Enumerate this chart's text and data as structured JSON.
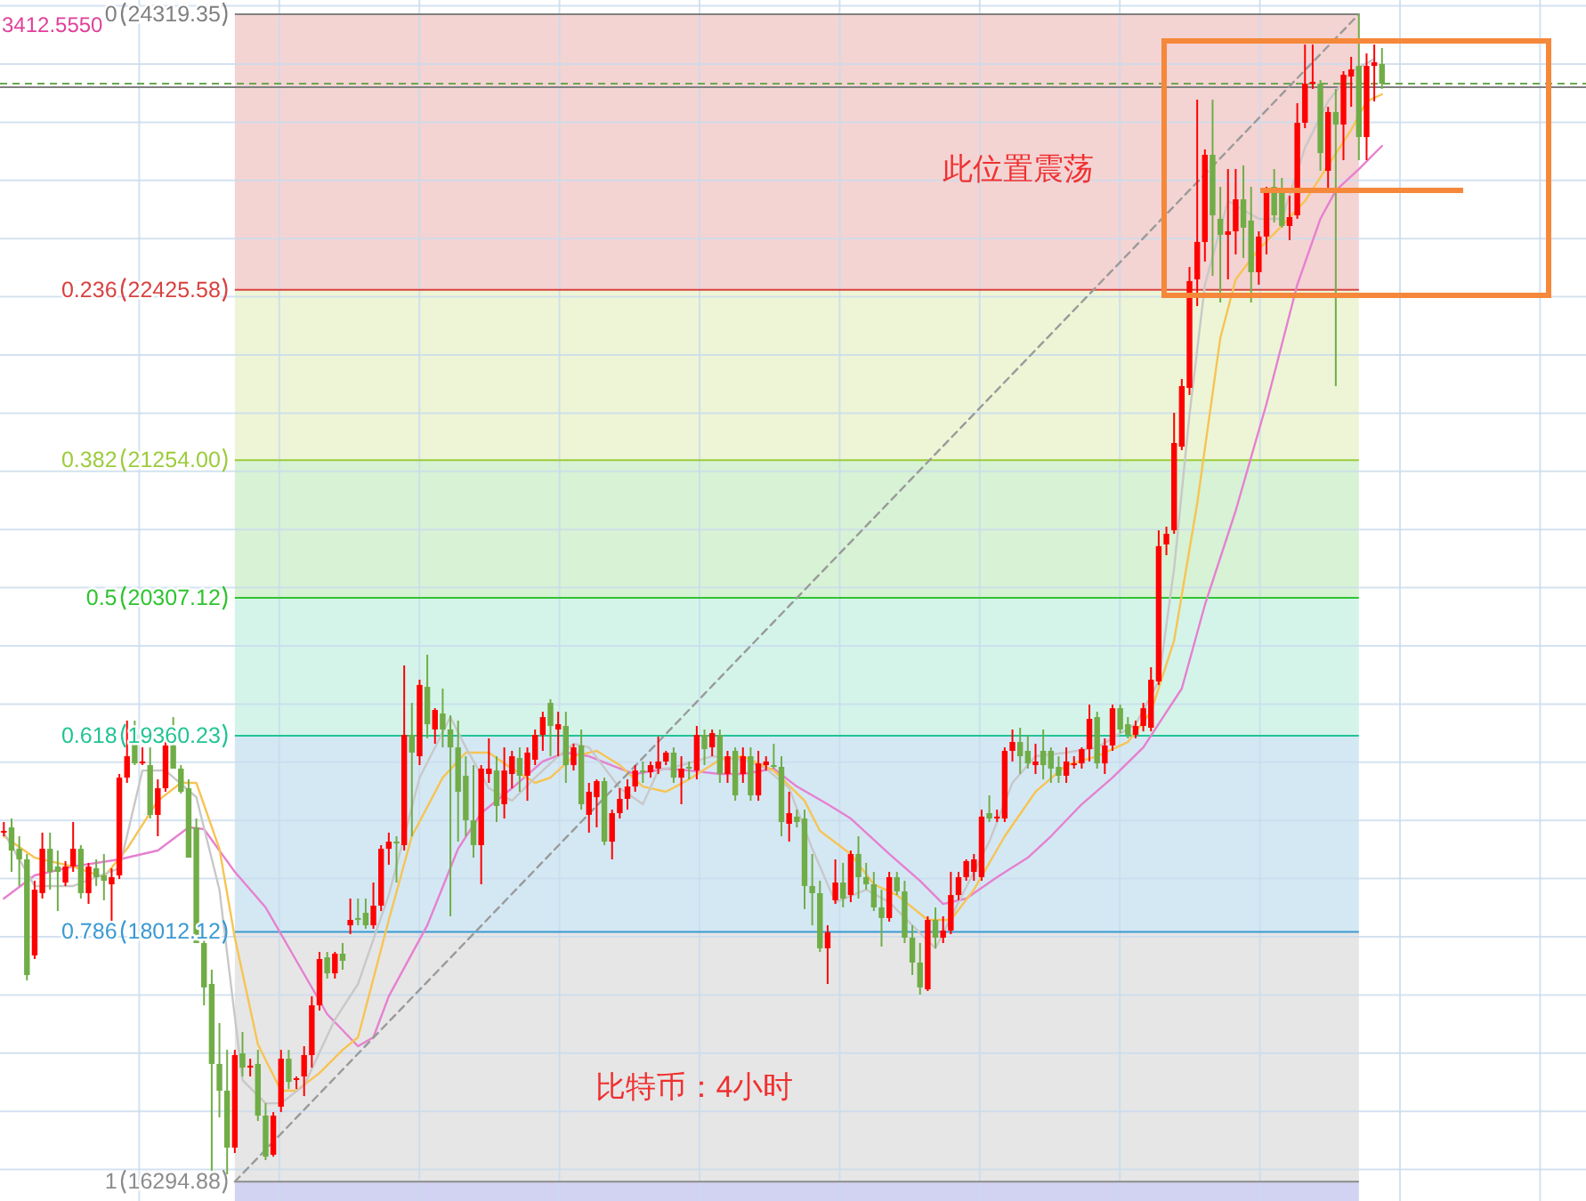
{
  "chart_data": {
    "type": "candlestick",
    "categories": [
      null,
      null,
      null,
      null,
      null,
      null,
      null,
      null,
      null,
      null,
      null,
      null,
      null,
      null,
      null,
      null,
      null,
      null,
      null,
      null,
      null,
      null,
      null,
      null,
      null,
      null,
      null,
      null,
      null,
      null,
      null,
      null,
      null,
      null,
      null,
      null,
      null,
      null,
      null,
      null,
      null,
      null,
      null,
      null,
      null,
      null,
      null,
      null,
      null,
      null,
      null,
      null,
      null,
      null,
      null,
      null,
      null,
      null,
      null,
      null,
      null,
      null,
      null,
      null,
      null,
      null,
      null,
      null,
      null,
      null,
      null,
      null,
      null,
      null,
      null,
      null,
      null,
      null,
      null,
      null,
      null,
      null,
      null,
      null,
      null,
      null,
      null,
      null,
      null,
      null,
      null,
      null,
      null,
      null,
      null,
      null,
      null,
      null,
      null,
      null,
      null,
      null,
      null,
      null,
      null,
      null,
      null,
      null,
      null,
      null,
      null,
      null,
      null,
      null,
      null,
      null,
      null,
      null,
      null,
      null,
      null,
      null,
      null,
      null,
      null,
      null,
      null,
      null,
      null,
      null,
      null,
      null,
      null,
      null,
      null,
      null,
      null,
      null,
      null,
      null,
      null,
      null,
      null,
      null,
      null,
      null,
      null,
      null,
      null,
      null,
      null,
      null,
      null,
      null,
      null,
      null,
      null,
      null,
      null,
      null,
      null,
      null,
      null,
      null,
      null,
      null,
      null,
      null,
      null,
      null,
      null,
      null,
      null,
      null,
      null,
      null,
      null,
      null,
      null,
      null,
      null,
      null,
      null,
      null,
      null,
      null,
      null,
      null,
      null,
      null,
      null,
      null,
      null,
      null,
      null,
      null,
      null,
      null,
      null,
      null,
      null,
      null,
      null,
      null,
      null,
      null
    ],
    "ohlc": [
      [
        18694,
        18767,
        18669,
        18706
      ],
      [
        18730,
        18791,
        18424,
        18571
      ],
      [
        18583,
        18669,
        18327,
        18510
      ],
      [
        18510,
        18547,
        17678,
        17715
      ],
      [
        17850,
        18363,
        17825,
        18302
      ],
      [
        18278,
        18694,
        18241,
        18583
      ],
      [
        18583,
        18694,
        18302,
        18424
      ],
      [
        18461,
        18571,
        18155,
        18424
      ],
      [
        18351,
        18498,
        18327,
        18461
      ],
      [
        18461,
        18767,
        18424,
        18583
      ],
      [
        18583,
        18608,
        18241,
        18278
      ],
      [
        18278,
        18486,
        18204,
        18461
      ],
      [
        18449,
        18510,
        18327,
        18388
      ],
      [
        18400,
        18547,
        18229,
        18363
      ],
      [
        18339,
        18449,
        18057,
        18388
      ],
      [
        18400,
        19097,
        18375,
        19072
      ],
      [
        19072,
        19464,
        19036,
        19219
      ],
      [
        19366,
        19464,
        19158,
        19170
      ],
      [
        19170,
        19280,
        19158,
        19183
      ],
      [
        19158,
        19280,
        18791,
        18816
      ],
      [
        18816,
        19060,
        18669,
        18999
      ],
      [
        18999,
        19329,
        18975,
        19293
      ],
      [
        19293,
        19488,
        19134,
        19134
      ],
      [
        19134,
        19158,
        18962,
        18975
      ],
      [
        18999,
        19060,
        18522,
        18522
      ],
      [
        18730,
        18791,
        17935,
        17935
      ],
      [
        17935,
        17996,
        17507,
        17630
      ],
      [
        17654,
        17752,
        16370,
        17104
      ],
      [
        17104,
        17385,
        16737,
        16920
      ],
      [
        16920,
        17201,
        16345,
        16529
      ],
      [
        16529,
        17201,
        16492,
        17165
      ],
      [
        17177,
        17324,
        17018,
        17079
      ],
      [
        17079,
        17140,
        17018,
        17092
      ],
      [
        17104,
        17201,
        16712,
        16749
      ],
      [
        16749,
        16834,
        16443,
        16467
      ],
      [
        16480,
        16773,
        16467,
        16749
      ],
      [
        16810,
        17201,
        16773,
        17140
      ],
      [
        17140,
        17201,
        16932,
        16981
      ],
      [
        16994,
        17018,
        16932,
        17006
      ],
      [
        17018,
        17226,
        16883,
        17165
      ],
      [
        17165,
        17569,
        17079,
        17507
      ],
      [
        17507,
        17874,
        17471,
        17825
      ],
      [
        17837,
        17874,
        17691,
        17727
      ],
      [
        17727,
        17874,
        17691,
        17862
      ],
      [
        17862,
        17935,
        17752,
        17813
      ],
      [
        18057,
        18241,
        17996,
        18094
      ],
      [
        18107,
        18241,
        18057,
        18094
      ],
      [
        18143,
        18241,
        18033,
        18057
      ],
      [
        18057,
        18351,
        18033,
        18192
      ],
      [
        18192,
        18608,
        18155,
        18583
      ],
      [
        18583,
        18694,
        18473,
        18632
      ],
      [
        18632,
        18669,
        18351,
        18620
      ],
      [
        18608,
        19843,
        18571,
        19366
      ],
      [
        19366,
        19586,
        18669,
        19244
      ],
      [
        19219,
        19745,
        19158,
        19709
      ],
      [
        19696,
        19917,
        19342,
        19439
      ],
      [
        19403,
        19549,
        19305,
        19537
      ],
      [
        19513,
        19684,
        19280,
        19403
      ],
      [
        19403,
        19500,
        18119,
        19280
      ],
      [
        19280,
        19464,
        18632,
        18975
      ],
      [
        19085,
        19219,
        18669,
        18779
      ],
      [
        18779,
        19158,
        18522,
        18608
      ],
      [
        18608,
        19158,
        18339,
        19134
      ],
      [
        19097,
        19342,
        19036,
        19134
      ],
      [
        19121,
        19219,
        18767,
        18877
      ],
      [
        18889,
        19280,
        18791,
        19121
      ],
      [
        19097,
        19256,
        18999,
        19219
      ],
      [
        19207,
        19280,
        18975,
        19085
      ],
      [
        19085,
        19280,
        18913,
        19244
      ],
      [
        19195,
        19403,
        19158,
        19366
      ],
      [
        19366,
        19525,
        19256,
        19488
      ],
      [
        19586,
        19611,
        19219,
        19427
      ],
      [
        19403,
        19525,
        19219,
        19439
      ],
      [
        19427,
        19525,
        19036,
        19158
      ],
      [
        19158,
        19305,
        19121,
        19280
      ],
      [
        19293,
        19403,
        18852,
        18889
      ],
      [
        18816,
        19036,
        18694,
        18975
      ],
      [
        18938,
        19060,
        18730,
        19048
      ],
      [
        19048,
        19072,
        18608,
        18632
      ],
      [
        18632,
        18852,
        18510,
        18828
      ],
      [
        18828,
        18999,
        18791,
        18926
      ],
      [
        18926,
        19060,
        18852,
        19011
      ],
      [
        19011,
        19158,
        18975,
        19121
      ],
      [
        19121,
        19183,
        19036,
        19109
      ],
      [
        19109,
        19183,
        19072,
        19158
      ],
      [
        19134,
        19354,
        19097,
        19183
      ],
      [
        19183,
        19256,
        19158,
        19244
      ],
      [
        19244,
        19280,
        19036,
        19072
      ],
      [
        19072,
        19219,
        18889,
        19134
      ],
      [
        19146,
        19183,
        19060,
        19134
      ],
      [
        19121,
        19427,
        19060,
        19366
      ],
      [
        19366,
        19403,
        19158,
        19268
      ],
      [
        19280,
        19403,
        19219,
        19378
      ],
      [
        19366,
        19403,
        19036,
        19097
      ],
      [
        19097,
        19256,
        19036,
        19219
      ],
      [
        19256,
        19280,
        18913,
        18950
      ],
      [
        19097,
        19280,
        19036,
        19219
      ],
      [
        19219,
        19280,
        18913,
        18950
      ],
      [
        18950,
        19256,
        18913,
        19170
      ],
      [
        19158,
        19219,
        19121,
        19183
      ],
      [
        19158,
        19305,
        19134,
        19146
      ],
      [
        19146,
        19219,
        18669,
        18767
      ],
      [
        18755,
        18975,
        18632,
        18828
      ],
      [
        18804,
        18852,
        18730,
        18767
      ],
      [
        18791,
        18852,
        18168,
        18327
      ],
      [
        18327,
        18547,
        18057,
        18278
      ],
      [
        18278,
        18363,
        17874,
        17899
      ],
      [
        17899,
        18057,
        17654,
        18009
      ],
      [
        18229,
        18510,
        18204,
        18351
      ],
      [
        18351,
        18486,
        18180,
        18241
      ],
      [
        18265,
        18571,
        18216,
        18547
      ],
      [
        18547,
        18669,
        18241,
        18388
      ],
      [
        18388,
        18486,
        18302,
        18339
      ],
      [
        18339,
        18424,
        18155,
        18180
      ],
      [
        18180,
        18302,
        17911,
        18107
      ],
      [
        18107,
        18424,
        18082,
        18388
      ],
      [
        18388,
        18424,
        18265,
        18290
      ],
      [
        18290,
        18363,
        17935,
        17972
      ],
      [
        17972,
        18057,
        17715,
        17801
      ],
      [
        17801,
        17935,
        17581,
        17630
      ],
      [
        17617,
        18119,
        17605,
        18094
      ],
      [
        18094,
        18180,
        17899,
        17972
      ],
      [
        17972,
        18119,
        17935,
        18021
      ],
      [
        18021,
        18424,
        17996,
        18265
      ],
      [
        18265,
        18424,
        18229,
        18388
      ],
      [
        18388,
        18510,
        18363,
        18498
      ],
      [
        18424,
        18547,
        18363,
        18510
      ],
      [
        18388,
        18852,
        18363,
        18804
      ],
      [
        18828,
        18950,
        18767,
        18791
      ],
      [
        18791,
        18852,
        18767,
        18804
      ],
      [
        18791,
        19280,
        18767,
        19256
      ],
      [
        19256,
        19403,
        19183,
        19317
      ],
      [
        19317,
        19415,
        19097,
        19219
      ],
      [
        19256,
        19366,
        19134,
        19170
      ],
      [
        19158,
        19305,
        19097,
        19183
      ],
      [
        19256,
        19403,
        19060,
        19158
      ],
      [
        19256,
        19280,
        19036,
        19134
      ],
      [
        19146,
        19219,
        19036,
        19085
      ],
      [
        19085,
        19280,
        19036,
        19183
      ],
      [
        19158,
        19219,
        19134,
        19170
      ],
      [
        19170,
        19280,
        19134,
        19268
      ],
      [
        19268,
        19574,
        19183,
        19476
      ],
      [
        19488,
        19525,
        19134,
        19170
      ],
      [
        19170,
        19342,
        19097,
        19293
      ],
      [
        19293,
        19574,
        19256,
        19549
      ],
      [
        19549,
        19574,
        19378,
        19403
      ],
      [
        19439,
        19488,
        19342,
        19366
      ],
      [
        19366,
        19464,
        19342,
        19427
      ],
      [
        19427,
        19586,
        19390,
        19549
      ],
      [
        19415,
        19831,
        19390,
        19745
      ],
      [
        19733,
        20772,
        19709,
        20663
      ],
      [
        20675,
        20797,
        20601,
        20748
      ],
      [
        20772,
        21580,
        20748,
        21372
      ],
      [
        21347,
        21812,
        21323,
        21763
      ],
      [
        21751,
        22582,
        21702,
        22485
      ],
      [
        22497,
        23732,
        22313,
        22754
      ],
      [
        22754,
        23390,
        22619,
        23353
      ],
      [
        23353,
        23732,
        22521,
        22937
      ],
      [
        22913,
        23133,
        22338,
        22803
      ],
      [
        22803,
        23255,
        22497,
        22827
      ],
      [
        22827,
        23255,
        22668,
        23047
      ],
      [
        23047,
        23280,
        22644,
        22852
      ],
      [
        22901,
        23133,
        22338,
        22546
      ],
      [
        22546,
        22827,
        22460,
        22791
      ],
      [
        22791,
        23133,
        22668,
        23108
      ],
      [
        23133,
        23255,
        22888,
        22937
      ],
      [
        23121,
        23194,
        22852,
        22864
      ],
      [
        22864,
        23072,
        22766,
        22925
      ],
      [
        22937,
        23708,
        22913,
        23573
      ],
      [
        23573,
        24111,
        23536,
        23842
      ],
      [
        23842,
        24111,
        23806,
        23854
      ],
      [
        23842,
        23867,
        23243,
        23365
      ],
      [
        23243,
        23683,
        23096,
        23647
      ],
      [
        23647,
        23806,
        21763,
        23561
      ],
      [
        23561,
        23928,
        23316,
        23903
      ],
      [
        23891,
        24026,
        23683,
        23940
      ],
      [
        23964,
        24319,
        23316,
        23475
      ],
      [
        23475,
        24050,
        23316,
        23964
      ],
      [
        23964,
        24111,
        23720,
        23989
      ],
      [
        23977,
        24087,
        23806,
        23842
      ],
      null,
      null,
      null,
      null,
      null,
      null,
      null,
      null,
      null,
      null,
      null,
      null,
      null,
      null,
      null,
      null,
      null,
      null,
      null,
      null,
      null,
      null,
      null,
      null,
      null,
      null
    ],
    "colors": [
      "#ff0000",
      "#70ad47",
      "#70ad47",
      "#70ad47",
      "#ff0000",
      "#ff0000",
      "#70ad47",
      "#70ad47",
      "#ff0000",
      "#ff0000",
      "#70ad47",
      "#ff0000",
      "#70ad47",
      "#70ad47",
      "#ff0000",
      "#ff0000",
      "#ff0000",
      "#70ad47",
      "#ff0000",
      "#70ad47",
      "#ff0000",
      "#ff0000",
      "#70ad47",
      "#70ad47",
      "#70ad47",
      "#70ad47",
      "#70ad47",
      "#70ad47",
      "#70ad47",
      "#70ad47",
      "#ff0000",
      "#70ad47",
      "#ff0000",
      "#70ad47",
      "#70ad47",
      "#ff0000",
      "#ff0000",
      "#70ad47",
      "#ff0000",
      "#ff0000",
      "#ff0000",
      "#ff0000",
      "#70ad47",
      "#ff0000",
      "#70ad47",
      "#ff0000",
      "#70ad47",
      "#70ad47",
      "#ff0000",
      "#ff0000",
      "#ff0000",
      "#70ad47",
      "#ff0000",
      "#70ad47",
      "#ff0000",
      "#70ad47",
      "#ff0000",
      "#70ad47",
      "#70ad47",
      "#70ad47",
      "#70ad47",
      "#70ad47",
      "#ff0000",
      "#ff0000",
      "#70ad47",
      "#ff0000",
      "#ff0000",
      "#70ad47",
      "#ff0000",
      "#ff0000",
      "#ff0000",
      "#70ad47",
      "#ff0000",
      "#70ad47",
      "#ff0000",
      "#70ad47",
      "#ff0000",
      "#ff0000",
      "#70ad47",
      "#ff0000",
      "#ff0000",
      "#ff0000",
      "#ff0000",
      "#70ad47",
      "#ff0000",
      "#ff0000",
      "#ff0000",
      "#70ad47",
      "#ff0000",
      "#70ad47",
      "#ff0000",
      "#70ad47",
      "#ff0000",
      "#70ad47",
      "#ff0000",
      "#70ad47",
      "#ff0000",
      "#70ad47",
      "#ff0000",
      "#ff0000",
      "#70ad47",
      "#70ad47",
      "#ff0000",
      "#70ad47",
      "#70ad47",
      "#70ad47",
      "#70ad47",
      "#ff0000",
      "#ff0000",
      "#70ad47",
      "#ff0000",
      "#70ad47",
      "#70ad47",
      "#70ad47",
      "#70ad47",
      "#ff0000",
      "#70ad47",
      "#70ad47",
      "#70ad47",
      "#70ad47",
      "#ff0000",
      "#70ad47",
      "#ff0000",
      "#ff0000",
      "#ff0000",
      "#ff0000",
      "#ff0000",
      "#ff0000",
      "#70ad47",
      "#ff0000",
      "#ff0000",
      "#ff0000",
      "#70ad47",
      "#70ad47",
      "#ff0000",
      "#70ad47",
      "#70ad47",
      "#70ad47",
      "#ff0000",
      "#ff0000",
      "#ff0000",
      "#ff0000",
      "#70ad47",
      "#ff0000",
      "#ff0000",
      "#70ad47",
      "#70ad47",
      "#ff0000",
      "#ff0000",
      "#ff0000",
      "#ff0000",
      "#ff0000",
      "#ff0000",
      "#ff0000",
      "#ff0000",
      "#ff0000",
      "#ff0000",
      "#70ad47",
      "#70ad47",
      "#ff0000",
      "#ff0000",
      "#70ad47",
      "#70ad47",
      "#ff0000",
      "#ff0000",
      "#70ad47",
      "#70ad47",
      "#ff0000",
      "#ff0000",
      "#ff0000",
      "#ff0000",
      "#70ad47",
      "#ff0000",
      "#70ad47",
      "#ff0000",
      "#ff0000",
      "#70ad47",
      "#ff0000",
      "#ff0000",
      "#70ad47",
      null,
      null,
      null,
      null,
      null,
      null,
      null,
      null,
      null,
      null,
      null,
      null,
      null,
      null,
      null,
      null,
      null,
      null,
      null,
      null,
      null,
      null,
      null,
      null,
      null,
      null
    ],
    "ylim": [
      16162,
      24417
    ],
    "yticks": [
      {
        "value": 24319.35,
        "label": "24319.35"
      },
      {
        "value": 22425.58,
        "label": "22425.58"
      },
      {
        "value": 21254,
        "label": "21254.00"
      },
      {
        "value": 20307.12,
        "label": "20307.12"
      },
      {
        "value": 19360.23,
        "label": "19360.23"
      },
      {
        "value": 18012.12,
        "label": "18012.12"
      },
      {
        "value": 16294.88,
        "label": "16294.88"
      }
    ],
    "tick_labels": "y",
    "grid": true,
    "series": [
      {
        "type": "line",
        "color": "#e680d0",
        "values": [
          18241,
          null,
          null,
          null,
          18400,
          null,
          null,
          null,
          null,
          18461,
          null,
          null,
          null,
          null,
          null,
          18510,
          null,
          null,
          null,
          null,
          18571,
          null,
          null,
          null,
          18730,
          null,
          18718,
          null,
          null,
          null,
          18424,
          null,
          null,
          null,
          18180,
          null,
          null,
          null,
          17813,
          null,
          null,
          null,
          17446,
          null,
          null,
          null,
          17226,
          null,
          17287,
          null,
          17569,
          null,
          null,
          null,
          null,
          18057,
          null,
          null,
          null,
          18583,
          null,
          null,
          18828,
          null,
          null,
          null,
          18999,
          null,
          null,
          null,
          19183,
          null,
          null,
          19244,
          null,
          null,
          19219,
          null,
          null,
          null,
          19134,
          null,
          19097,
          null,
          null,
          null,
          19134,
          null,
          null,
          19121,
          null,
          null,
          null,
          19097,
          null,
          null,
          19097,
          null,
          null,
          null,
          19134,
          null,
          null,
          19011,
          null,
          null,
          null,
          18889,
          null,
          null,
          18791,
          null,
          null,
          null,
          null,
          18547,
          null,
          null,
          null,
          18363,
          null,
          null,
          18204,
          null,
          null,
          18241,
          null,
          null,
          null,
          18388,
          null,
          null,
          null,
          18522,
          null,
          null,
          18669,
          null,
          null,
          null,
          18889,
          null,
          null,
          null,
          19072,
          null,
          null,
          null,
          19280,
          null,
          null,
          null,
          null,
          19684,
          null,
          null,
          20259,
          null,
          null,
          null,
          20907,
          null,
          null,
          null,
          21641,
          null,
          null,
          null,
          22460,
          null,
          null,
          22913,
          null,
          23108,
          null,
          null,
          23255,
          null,
          null,
          23414,
          null,
          null,
          null,
          null,
          null,
          null,
          null,
          null,
          null,
          null,
          null,
          null,
          null,
          null,
          null,
          null,
          null,
          null,
          null,
          null,
          null,
          null,
          null,
          null,
          null,
          null
        ]
      },
      {
        "type": "line",
        "color": "#f7c453",
        "values": [
          18669,
          null,
          null,
          null,
          18522,
          null,
          null,
          null,
          null,
          18461,
          null,
          null,
          null,
          18388,
          null,
          null,
          18583,
          null,
          null,
          null,
          18913,
          null,
          null,
          19036,
          null,
          19036,
          null,
          null,
          18583,
          null,
          17972,
          null,
          null,
          17238,
          null,
          null,
          16920,
          null,
          16920,
          null,
          null,
          17042,
          null,
          null,
          17201,
          null,
          17287,
          null,
          null,
          null,
          18094,
          null,
          null,
          18669,
          null,
          null,
          null,
          19072,
          null,
          null,
          19244,
          null,
          null,
          19244,
          null,
          null,
          19134,
          null,
          null,
          19036,
          null,
          19072,
          null,
          null,
          19219,
          null,
          null,
          19256,
          null,
          null,
          19158,
          null,
          null,
          19011,
          null,
          null,
          18975,
          null,
          null,
          19060,
          null,
          null,
          null,
          19195,
          null,
          null,
          19219,
          null,
          null,
          null,
          19121,
          null,
          null,
          null,
          18913,
          null,
          18706,
          null,
          null,
          null,
          18547,
          null,
          null,
          18339,
          null,
          null,
          18265,
          null,
          null,
          null,
          18094,
          null,
          null,
          18094,
          null,
          null,
          18302,
          null,
          null,
          null,
          18669,
          null,
          null,
          null,
          18975,
          null,
          null,
          null,
          19158,
          null,
          null,
          null,
          19219,
          null,
          null,
          null,
          19317,
          null,
          null,
          19525,
          null,
          null,
          20014,
          null,
          null,
          20956,
          null,
          null,
          22093,
          null,
          22497,
          null,
          null,
          22705,
          null,
          null,
          22864,
          null,
          null,
          23035,
          null,
          null,
          23280,
          null,
          null,
          23524,
          null,
          23720,
          null,
          23769,
          null,
          null,
          null,
          null,
          null,
          null,
          null,
          null,
          null,
          null,
          null,
          null,
          null,
          null,
          null,
          null,
          null,
          null,
          null,
          null,
          null,
          null,
          null,
          null,
          null,
          null
        ]
      },
      {
        "type": "line",
        "color": "#c8c8c8",
        "values": [
          18694,
          null,
          null,
          null,
          18327,
          null,
          null,
          null,
          null,
          18327,
          null,
          null,
          null,
          null,
          null,
          18449,
          null,
          null,
          19121,
          null,
          null,
          19121,
          null,
          null,
          null,
          18938,
          null,
          null,
          18302,
          null,
          null,
          16993,
          null,
          null,
          16834,
          null,
          16834,
          null,
          null,
          16957,
          null,
          null,
          null,
          17409,
          null,
          null,
          17654,
          null,
          null,
          null,
          18265,
          null,
          null,
          null,
          19072,
          null,
          null,
          null,
          19488,
          null,
          19280,
          null,
          null,
          18999,
          null,
          null,
          18913,
          null,
          null,
          19072,
          null,
          null,
          19219,
          null,
          19305,
          null,
          19280,
          null,
          null,
          null,
          18999,
          null,
          null,
          18889,
          null,
          19121,
          null,
          null,
          19158,
          null,
          null,
          null,
          19219,
          null,
          null,
          null,
          19195,
          null,
          null,
          19134,
          null,
          null,
          18999,
          null,
          null,
          18583,
          null,
          null,
          18216,
          null,
          null,
          null,
          18302,
          null,
          null,
          18216,
          null,
          null,
          18057,
          null,
          null,
          17899,
          null,
          null,
          18216,
          null,
          null,
          null,
          18632,
          null,
          null,
          19036,
          null,
          null,
          19219,
          null,
          null,
          null,
          19244,
          null,
          null,
          null,
          19280,
          null,
          null,
          null,
          null,
          19439,
          null,
          null,
          19733,
          null,
          20507,
          null,
          21567,
          null,
          22460,
          null,
          null,
          23035,
          null,
          null,
          null,
          22913,
          null,
          null,
          22913,
          null,
          null,
          23402,
          null,
          null,
          23720,
          null,
          null,
          23925,
          null,
          null,
          24011,
          null,
          null,
          null,
          null,
          null,
          null,
          null,
          null,
          null,
          null,
          null,
          null,
          null,
          null,
          null,
          null,
          null,
          null,
          null,
          null,
          null,
          null,
          null,
          null,
          null,
          null,
          null
        ]
      },
      {
        "type": "line",
        "color": "#9a9a9a",
        "line_style": "dashed",
        "values": [
          null,
          null,
          null,
          null,
          null,
          null,
          null,
          null,
          null,
          null,
          null,
          null,
          null,
          null,
          null,
          null,
          null,
          null,
          null,
          null,
          null,
          null,
          null,
          null,
          null,
          null,
          null,
          null,
          null,
          null,
          16294.88,
          null,
          null,
          null,
          null,
          null,
          null,
          null,
          null,
          null,
          null,
          null,
          null,
          null,
          null,
          null,
          null,
          null,
          null,
          null,
          null,
          null,
          null,
          null,
          null,
          null,
          null,
          null,
          null,
          null,
          null,
          null,
          null,
          null,
          null,
          null,
          null,
          null,
          null,
          null,
          null,
          null,
          null,
          null,
          null,
          null,
          null,
          null,
          null,
          null,
          null,
          null,
          null,
          null,
          null,
          null,
          null,
          null,
          null,
          null,
          null,
          null,
          null,
          null,
          null,
          null,
          null,
          null,
          null,
          null,
          null,
          null,
          null,
          null,
          null,
          null,
          null,
          null,
          null,
          null,
          null,
          null,
          null,
          null,
          null,
          null,
          null,
          null,
          null,
          null,
          null,
          null,
          null,
          null,
          null,
          null,
          null,
          null,
          null,
          null,
          null,
          null,
          null,
          null,
          null,
          null,
          null,
          null,
          null,
          null,
          null,
          null,
          null,
          null,
          null,
          null,
          null,
          null,
          null,
          null,
          null,
          null,
          null,
          null,
          null,
          null,
          null,
          null,
          null,
          null,
          null,
          null,
          null,
          null,
          null,
          null,
          null,
          null,
          null,
          null,
          null,
          null,
          null,
          null,
          null,
          null,
          24319.35,
          null,
          null,
          null,
          null,
          null,
          null,
          null,
          null,
          null,
          null,
          null,
          null,
          null,
          null,
          null,
          null,
          null,
          null,
          null,
          null,
          null,
          null,
          null,
          null,
          null,
          null,
          null,
          null,
          null
        ]
      }
    ],
    "ref_lines": [
      {
        "axis": "y",
        "value": 24319.35,
        "color": "#808080"
      },
      {
        "axis": "y",
        "value": 22425.58,
        "color": "#d9413f"
      },
      {
        "axis": "y",
        "value": 21254,
        "color": "#9ccc3c"
      },
      {
        "axis": "y",
        "value": 20307.12,
        "color": "#2fc42f"
      },
      {
        "axis": "y",
        "value": 19360.23,
        "color": "#22c493"
      },
      {
        "axis": "y",
        "value": 18012.12,
        "color": "#3b9ad2"
      },
      {
        "axis": "y",
        "value": 16294.88,
        "color": "#8c8c8c"
      },
      {
        "axis": "y",
        "value": 23842,
        "color": "#6aa84f",
        "line_style": "dashed"
      },
      {
        "axis": "y",
        "value": 23818,
        "color": "#808080"
      }
    ],
    "bands": [
      {
        "axis": "y",
        "from": 22425.58,
        "to": 24319.35,
        "color": "#f4d3d3"
      },
      {
        "axis": "y",
        "from": 21254,
        "to": 22425.58,
        "color": "#edf5d6"
      },
      {
        "axis": "y",
        "from": 20307.12,
        "to": 21254,
        "color": "#d7f2d4"
      },
      {
        "axis": "y",
        "from": 19360.23,
        "to": 20307.12,
        "color": "#d4f4ea"
      },
      {
        "axis": "y",
        "from": 18012.12,
        "to": 19360.23,
        "color": "#d4e8f4"
      },
      {
        "axis": "y",
        "from": 16294.88,
        "to": 18012.12,
        "color": "#e6e6e6"
      },
      {
        "axis": "y",
        "from": 16162,
        "to": 16294.88,
        "color": "#d2d2f2"
      }
    ],
    "annotations": [
      "3412.5550",
      "此位置震荡",
      "比特币：4小时",
      "0",
      "0.236",
      "0.382",
      "0.5",
      "0.618",
      "0.786",
      "1"
    ]
  }
}
